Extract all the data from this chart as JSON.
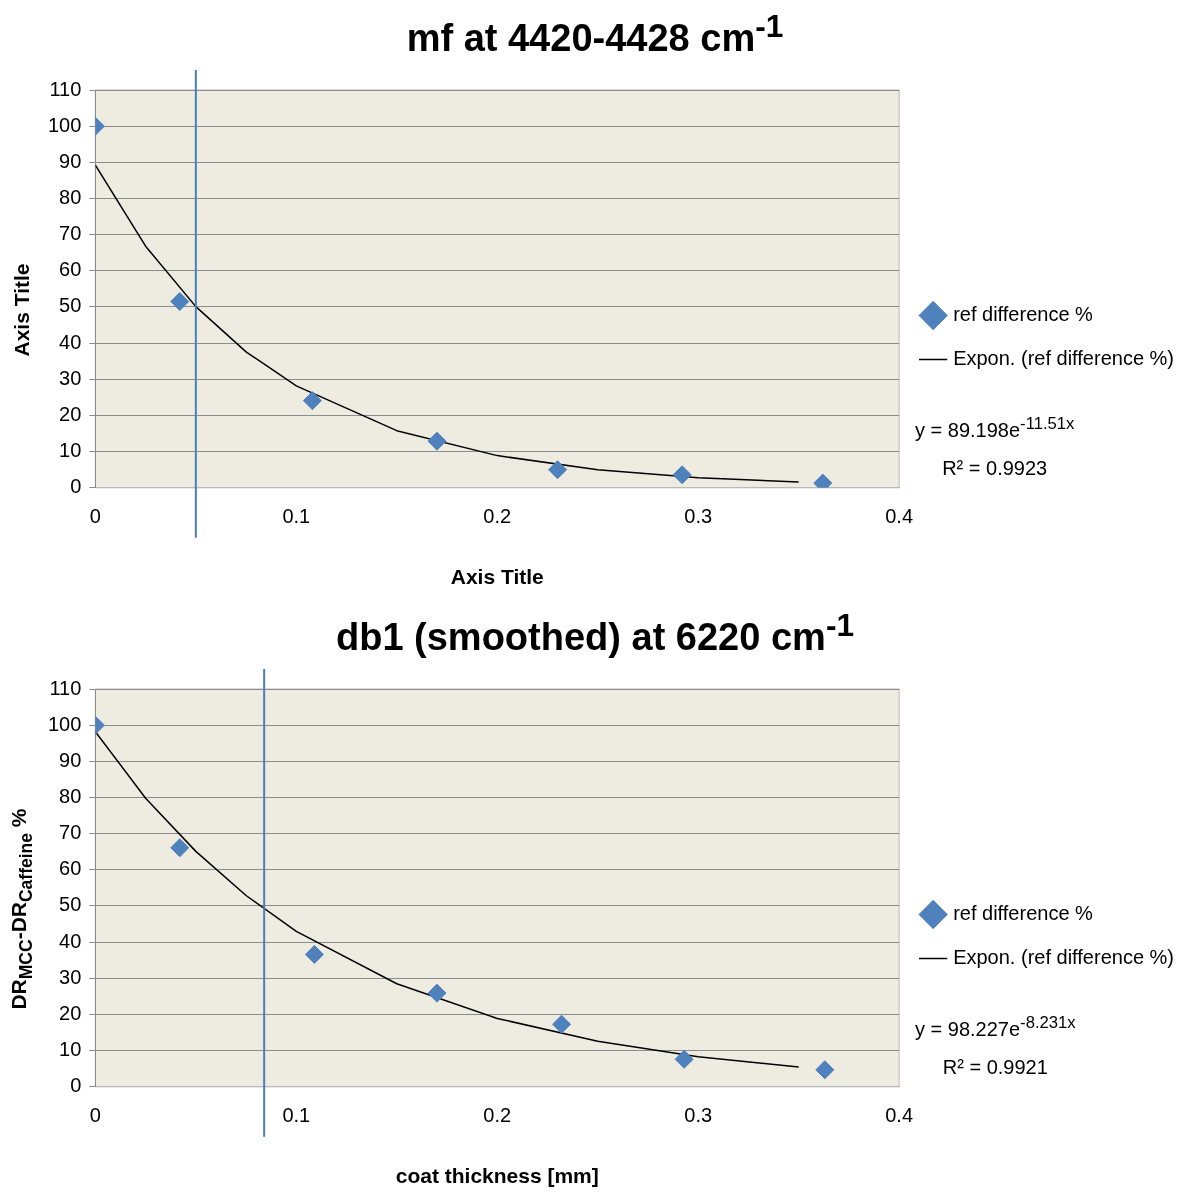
{
  "chart_data": [
    {
      "type": "scatter",
      "title": "mf at 4420-4428 cm$^{-1}$",
      "xlabel": "Axis Title",
      "ylabel": "Axis Title",
      "series": [
        {
          "name": "ref difference %",
          "color": "#4f81bd",
          "x": [
            0,
            0.042,
            0.108,
            0.17,
            0.23,
            0.292,
            0.362
          ],
          "values": [
            100,
            51.5,
            24.1,
            12.9,
            5,
            3.6,
            1.3
          ]
        },
        {
          "name": "Expon. (ref difference %)",
          "type": "line",
          "marker": "none",
          "color": "#000000",
          "x": [
            0,
            0.025,
            0.05,
            0.075,
            0.1,
            0.15,
            0.2,
            0.25,
            0.3,
            0.35
          ],
          "values": [
            89.2,
            66.8,
            50.1,
            37.6,
            28.2,
            15.8,
            8.9,
            5,
            2.8,
            1.6
          ]
        }
      ],
      "xlim": [
        0,
        0.4
      ],
      "xticks": [
        0,
        0.1,
        0.2,
        0.3,
        0.4
      ],
      "ylim": [
        0,
        110
      ],
      "yticks": [
        0,
        10,
        20,
        30,
        40,
        50,
        60,
        70,
        80,
        90,
        100,
        110
      ],
      "grid": "y",
      "legend": "right",
      "marker": "diamond",
      "line_style": "solid",
      "ref_lines": [
        {
          "axis": "x",
          "value": 0.05,
          "color": "#4a7ebb"
        }
      ],
      "annotations": [
        "y = 89.198e$^{-11.51x}$",
        "R² = 0.9923"
      ]
    },
    {
      "type": "scatter",
      "title": "db1 (smoothed) at 6220 cm$^{-1}$",
      "xlabel": "coat thickness [mm]",
      "ylabel": "DR$_{MCC}$-DR$_{Caffeine}$ %",
      "series": [
        {
          "name": "ref difference %",
          "color": "#4f81bd",
          "x": [
            0,
            0.042,
            0.109,
            0.17,
            0.232,
            0.293,
            0.363
          ],
          "values": [
            100,
            66.1,
            36.6,
            25.9,
            17.3,
            7.6,
            4.7
          ]
        },
        {
          "name": "Expon. (ref difference %)",
          "type": "line",
          "marker": "none",
          "color": "#000000",
          "x": [
            0,
            0.025,
            0.05,
            0.075,
            0.1,
            0.15,
            0.2,
            0.25,
            0.3,
            0.35
          ],
          "values": [
            98.2,
            79.8,
            65.1,
            52.9,
            43,
            28.5,
            18.9,
            12.6,
            8.3,
            5.5
          ]
        }
      ],
      "xlim": [
        0,
        0.4
      ],
      "xticks": [
        0,
        0.1,
        0.2,
        0.3,
        0.4
      ],
      "ylim": [
        0,
        110
      ],
      "yticks": [
        0,
        10,
        20,
        30,
        40,
        50,
        60,
        70,
        80,
        90,
        100,
        110
      ],
      "grid": "y",
      "legend": "right",
      "marker": "diamond",
      "line_style": "solid",
      "ref_lines": [
        {
          "axis": "x",
          "value": 0.084,
          "color": "#4a7ebb"
        }
      ],
      "annotations": [
        "y = 98.227e$^{-8.231x}$",
        "R² = 0.9921"
      ]
    }
  ]
}
